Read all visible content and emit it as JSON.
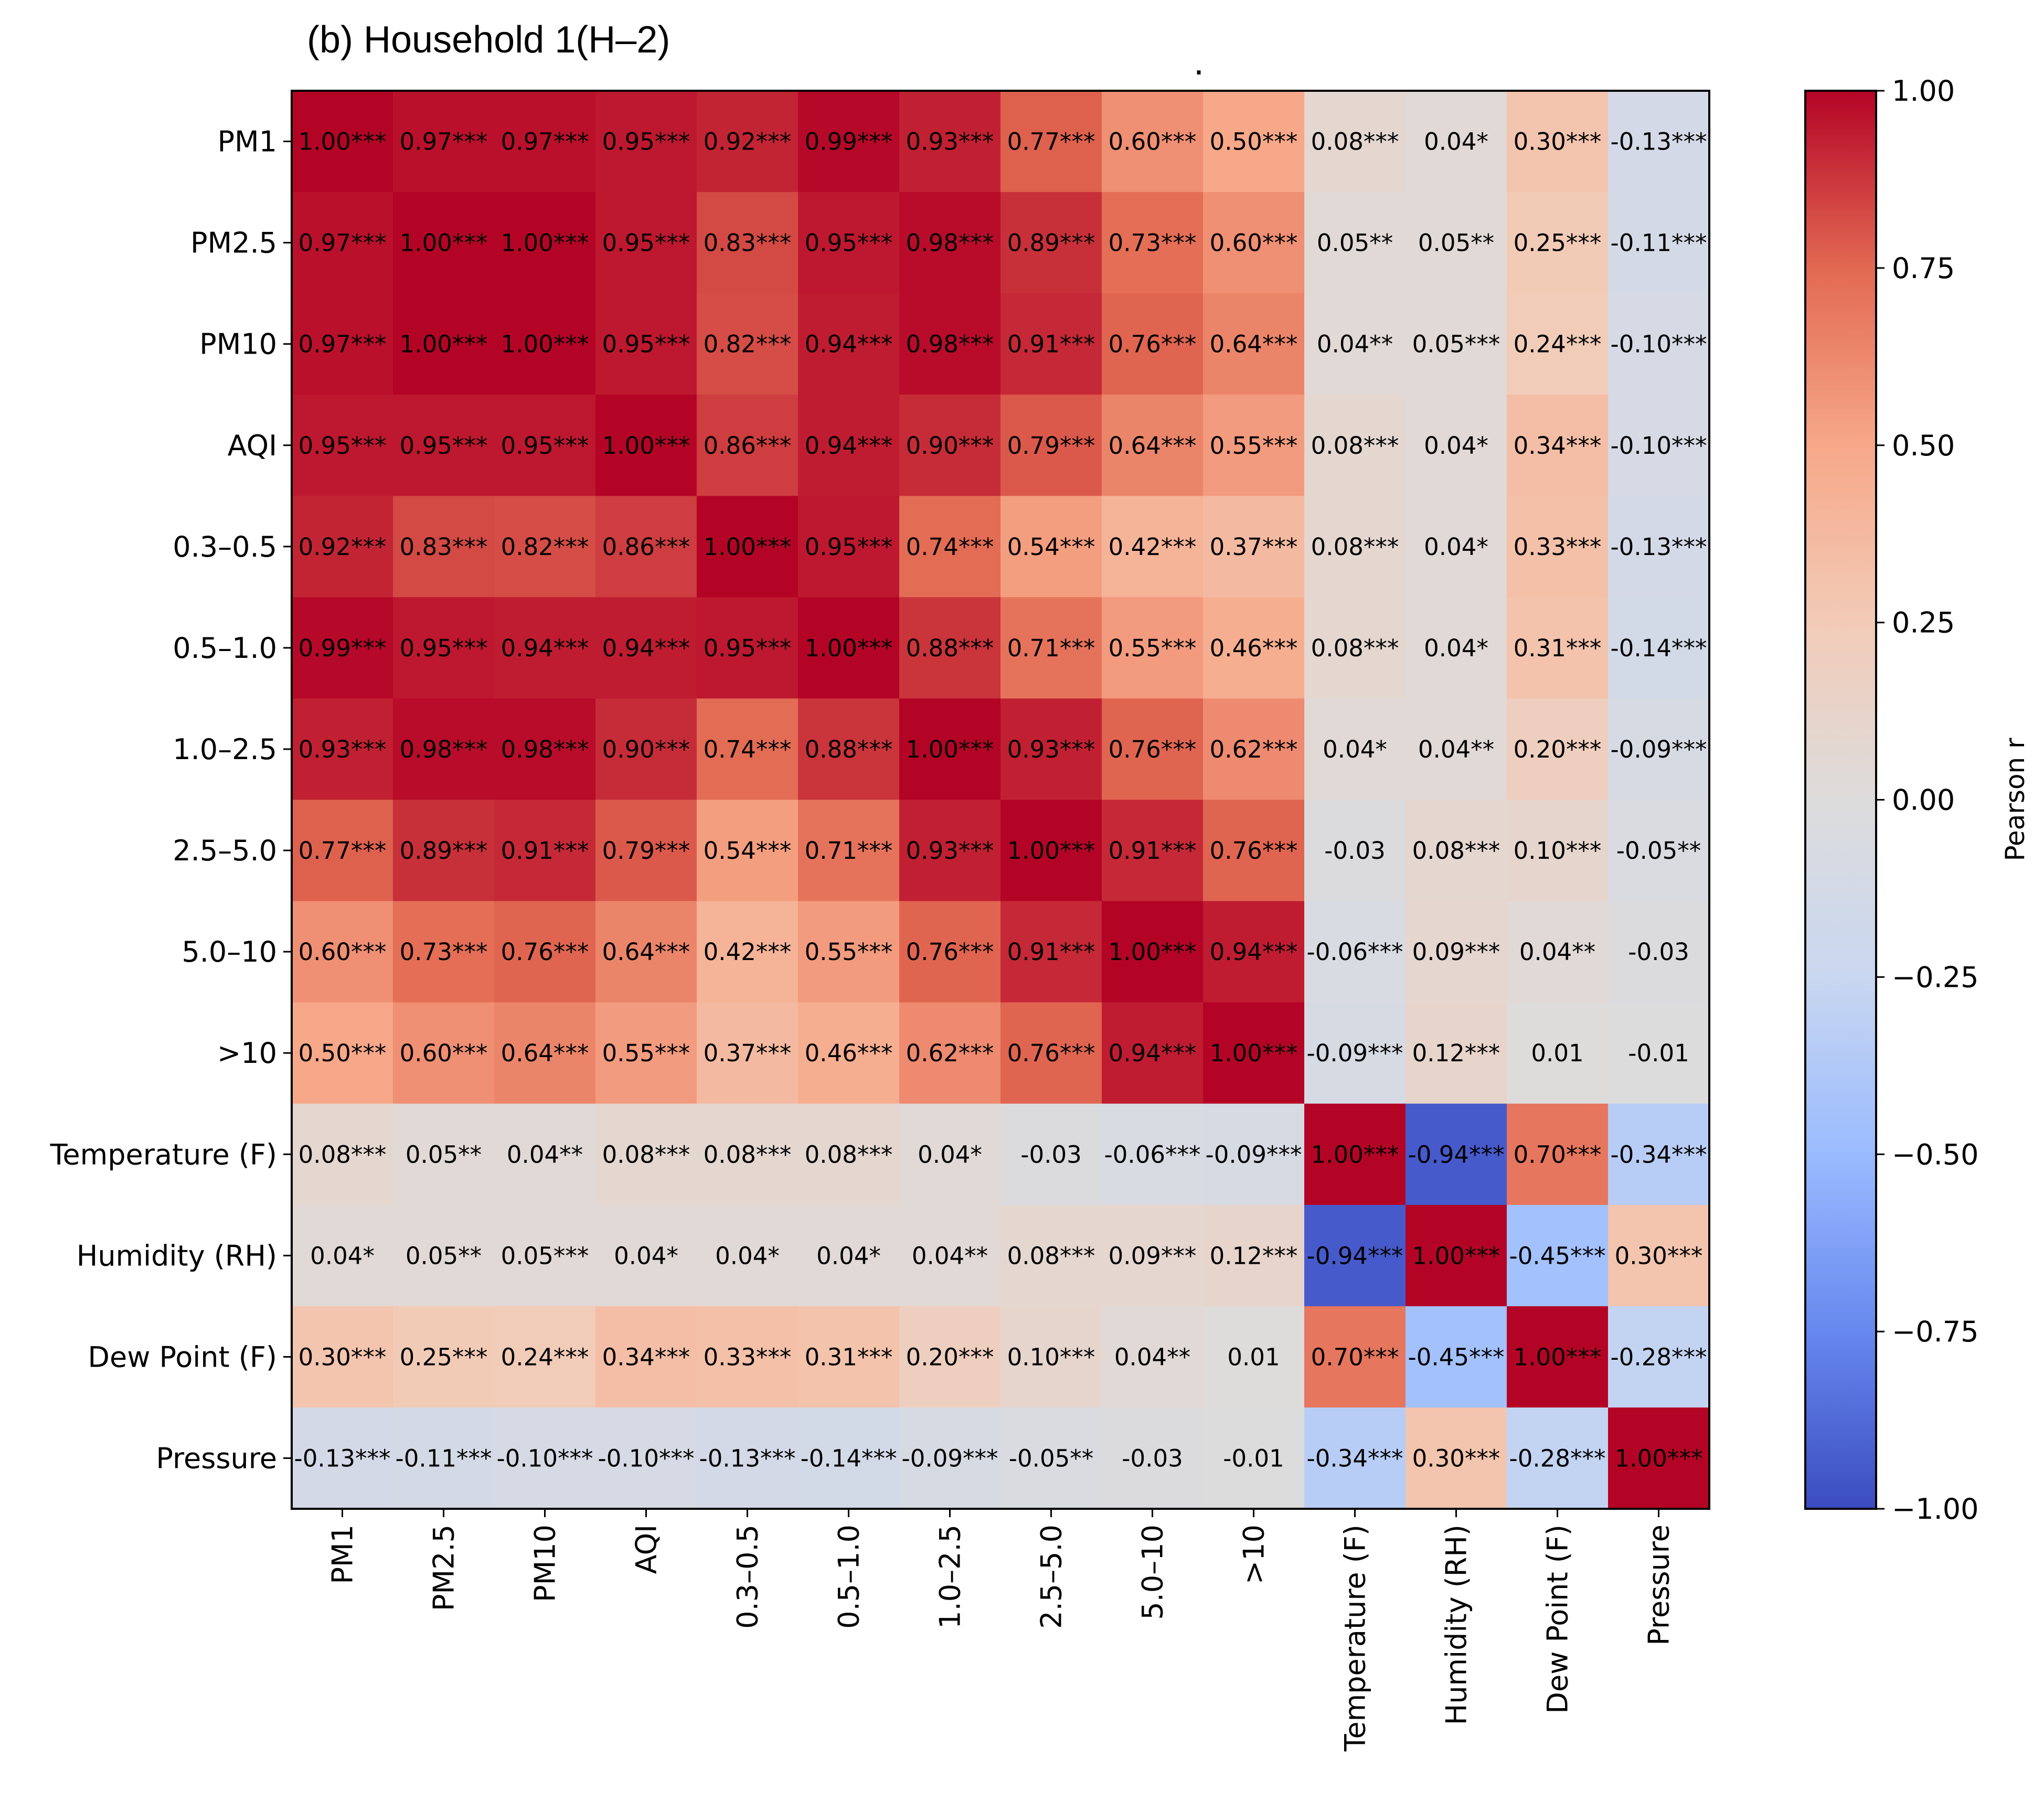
{
  "chart_data": {
    "type": "heatmap",
    "title": "(b) Household 1(H–2)",
    "stray_mark": ".",
    "xlabels": [
      "PM1",
      "PM2.5",
      "PM10",
      "AQI",
      "0.3–0.5",
      "0.5–1.0",
      "1.0–2.5",
      "2.5–5.0",
      "5.0–10",
      ">10",
      "Temperature (F)",
      "Humidity (RH)",
      "Dew Point (F)",
      "Pressure"
    ],
    "ylabels": [
      "PM1",
      "PM2.5",
      "PM10",
      "AQI",
      "0.3–0.5",
      "0.5–1.0",
      "1.0–2.5",
      "2.5–5.0",
      "5.0–10",
      ">10",
      "Temperature (F)",
      "Humidity (RH)",
      "Dew Point (F)",
      "Pressure"
    ],
    "values": [
      [
        1.0,
        0.97,
        0.97,
        0.95,
        0.92,
        0.99,
        0.93,
        0.77,
        0.6,
        0.5,
        0.08,
        0.04,
        0.3,
        -0.13
      ],
      [
        0.97,
        1.0,
        1.0,
        0.95,
        0.83,
        0.95,
        0.98,
        0.89,
        0.73,
        0.6,
        0.05,
        0.05,
        0.25,
        -0.11
      ],
      [
        0.97,
        1.0,
        1.0,
        0.95,
        0.82,
        0.94,
        0.98,
        0.91,
        0.76,
        0.64,
        0.04,
        0.05,
        0.24,
        -0.1
      ],
      [
        0.95,
        0.95,
        0.95,
        1.0,
        0.86,
        0.94,
        0.9,
        0.79,
        0.64,
        0.55,
        0.08,
        0.04,
        0.34,
        -0.1
      ],
      [
        0.92,
        0.83,
        0.82,
        0.86,
        1.0,
        0.95,
        0.74,
        0.54,
        0.42,
        0.37,
        0.08,
        0.04,
        0.33,
        -0.13
      ],
      [
        0.99,
        0.95,
        0.94,
        0.94,
        0.95,
        1.0,
        0.88,
        0.71,
        0.55,
        0.46,
        0.08,
        0.04,
        0.31,
        -0.14
      ],
      [
        0.93,
        0.98,
        0.98,
        0.9,
        0.74,
        0.88,
        1.0,
        0.93,
        0.76,
        0.62,
        0.04,
        0.04,
        0.2,
        -0.09
      ],
      [
        0.77,
        0.89,
        0.91,
        0.79,
        0.54,
        0.71,
        0.93,
        1.0,
        0.91,
        0.76,
        -0.03,
        0.08,
        0.1,
        -0.05
      ],
      [
        0.6,
        0.73,
        0.76,
        0.64,
        0.42,
        0.55,
        0.76,
        0.91,
        1.0,
        0.94,
        -0.06,
        0.09,
        0.04,
        -0.03
      ],
      [
        0.5,
        0.6,
        0.64,
        0.55,
        0.37,
        0.46,
        0.62,
        0.76,
        0.94,
        1.0,
        -0.09,
        0.12,
        0.01,
        -0.01
      ],
      [
        0.08,
        0.05,
        0.04,
        0.08,
        0.08,
        0.08,
        0.04,
        -0.03,
        -0.06,
        -0.09,
        1.0,
        -0.94,
        0.7,
        -0.34
      ],
      [
        0.04,
        0.05,
        0.05,
        0.04,
        0.04,
        0.04,
        0.04,
        0.08,
        0.09,
        0.12,
        -0.94,
        1.0,
        -0.45,
        0.3
      ],
      [
        0.3,
        0.25,
        0.24,
        0.34,
        0.33,
        0.31,
        0.2,
        0.1,
        0.04,
        0.01,
        0.7,
        -0.45,
        1.0,
        -0.28
      ],
      [
        -0.13,
        -0.11,
        -0.1,
        -0.1,
        -0.13,
        -0.14,
        -0.09,
        -0.05,
        -0.03,
        -0.01,
        -0.34,
        0.3,
        -0.28,
        1.0
      ]
    ],
    "annotations": [
      [
        "1.00***",
        "0.97***",
        "0.97***",
        "0.95***",
        "0.92***",
        "0.99***",
        "0.93***",
        "0.77***",
        "0.60***",
        "0.50***",
        "0.08***",
        "0.04*",
        "0.30***",
        "-0.13***"
      ],
      [
        "0.97***",
        "1.00***",
        "1.00***",
        "0.95***",
        "0.83***",
        "0.95***",
        "0.98***",
        "0.89***",
        "0.73***",
        "0.60***",
        "0.05**",
        "0.05**",
        "0.25***",
        "-0.11***"
      ],
      [
        "0.97***",
        "1.00***",
        "1.00***",
        "0.95***",
        "0.82***",
        "0.94***",
        "0.98***",
        "0.91***",
        "0.76***",
        "0.64***",
        "0.04**",
        "0.05***",
        "0.24***",
        "-0.10***"
      ],
      [
        "0.95***",
        "0.95***",
        "0.95***",
        "1.00***",
        "0.86***",
        "0.94***",
        "0.90***",
        "0.79***",
        "0.64***",
        "0.55***",
        "0.08***",
        "0.04*",
        "0.34***",
        "-0.10***"
      ],
      [
        "0.92***",
        "0.83***",
        "0.82***",
        "0.86***",
        "1.00***",
        "0.95***",
        "0.74***",
        "0.54***",
        "0.42***",
        "0.37***",
        "0.08***",
        "0.04*",
        "0.33***",
        "-0.13***"
      ],
      [
        "0.99***",
        "0.95***",
        "0.94***",
        "0.94***",
        "0.95***",
        "1.00***",
        "0.88***",
        "0.71***",
        "0.55***",
        "0.46***",
        "0.08***",
        "0.04*",
        "0.31***",
        "-0.14***"
      ],
      [
        "0.93***",
        "0.98***",
        "0.98***",
        "0.90***",
        "0.74***",
        "0.88***",
        "1.00***",
        "0.93***",
        "0.76***",
        "0.62***",
        "0.04*",
        "0.04**",
        "0.20***",
        "-0.09***"
      ],
      [
        "0.77***",
        "0.89***",
        "0.91***",
        "0.79***",
        "0.54***",
        "0.71***",
        "0.93***",
        "1.00***",
        "0.91***",
        "0.76***",
        "-0.03",
        "0.08***",
        "0.10***",
        "-0.05**"
      ],
      [
        "0.60***",
        "0.73***",
        "0.76***",
        "0.64***",
        "0.42***",
        "0.55***",
        "0.76***",
        "0.91***",
        "1.00***",
        "0.94***",
        "-0.06***",
        "0.09***",
        "0.04**",
        "-0.03"
      ],
      [
        "0.50***",
        "0.60***",
        "0.64***",
        "0.55***",
        "0.37***",
        "0.46***",
        "0.62***",
        "0.76***",
        "0.94***",
        "1.00***",
        "-0.09***",
        "0.12***",
        "0.01",
        "-0.01"
      ],
      [
        "0.08***",
        "0.05**",
        "0.04**",
        "0.08***",
        "0.08***",
        "0.08***",
        "0.04*",
        "-0.03",
        "-0.06***",
        "-0.09***",
        "1.00***",
        "-0.94***",
        "0.70***",
        "-0.34***"
      ],
      [
        "0.04*",
        "0.05**",
        "0.05***",
        "0.04*",
        "0.04*",
        "0.04*",
        "0.04**",
        "0.08***",
        "0.09***",
        "0.12***",
        "-0.94***",
        "1.00***",
        "-0.45***",
        "0.30***"
      ],
      [
        "0.30***",
        "0.25***",
        "0.24***",
        "0.34***",
        "0.33***",
        "0.31***",
        "0.20***",
        "0.10***",
        "0.04**",
        "0.01",
        "0.70***",
        "-0.45***",
        "1.00***",
        "-0.28***"
      ],
      [
        "-0.13***",
        "-0.11***",
        "-0.10***",
        "-0.10***",
        "-0.13***",
        "-0.14***",
        "-0.09***",
        "-0.05**",
        "-0.03",
        "-0.01",
        "-0.34***",
        "0.30***",
        "-0.28***",
        "1.00***"
      ]
    ],
    "colormap": "coolwarm",
    "colormap_stops": [
      "#3b4cc0",
      "#6788ee",
      "#9abbff",
      "#c9d7f0",
      "#dddcdc",
      "#f2cbb7",
      "#f7a889",
      "#e26952",
      "#b40426"
    ],
    "vmin": -1.0,
    "vmax": 1.0,
    "colorbar": {
      "label": "Pearson r",
      "ticks": [
        1.0,
        0.75,
        0.5,
        0.25,
        0.0,
        -0.25,
        -0.5,
        -0.75,
        -1.0
      ],
      "tick_labels": [
        "1.00",
        "0.75",
        "0.50",
        "0.25",
        "0.00",
        "−0.25",
        "−0.50",
        "−0.75",
        "−1.00"
      ]
    }
  }
}
